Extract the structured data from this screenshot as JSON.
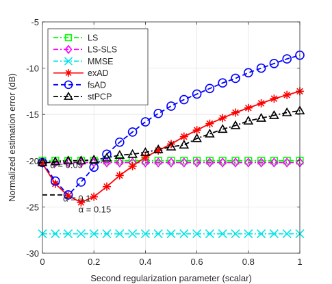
{
  "chart_data": {
    "type": "line",
    "title": "",
    "xlabel": "Second regularization parameter (scalar)",
    "ylabel": "Normalized estimation error (dB)",
    "xlim": [
      0,
      1
    ],
    "ylim": [
      -30,
      -5
    ],
    "xticks": [
      0,
      0.2,
      0.4,
      0.6,
      0.8,
      1
    ],
    "xtick_labels": [
      "0",
      "0.2",
      "0.4",
      "0.6",
      "0.8",
      "1"
    ],
    "yticks": [
      -30,
      -25,
      -20,
      -15,
      -10,
      -5
    ],
    "ytick_labels": [
      "-30",
      "-25",
      "-20",
      "-15",
      "-10",
      "-5"
    ],
    "grid": true,
    "legend_position": "top-left",
    "x": [
      0,
      0.05,
      0.1,
      0.15,
      0.2,
      0.25,
      0.3,
      0.35,
      0.4,
      0.45,
      0.5,
      0.55,
      0.6,
      0.65,
      0.7,
      0.75,
      0.8,
      0.85,
      0.9,
      0.95,
      1
    ],
    "series": [
      {
        "name": "LS",
        "color": "#00ff00",
        "dash": "dashdot",
        "marker": "square",
        "values": [
          -20,
          -20,
          -20,
          -20,
          -20,
          -20,
          -20,
          -20,
          -20,
          -20,
          -20,
          -20,
          -20,
          -20,
          -20,
          -20,
          -20,
          -20,
          -20,
          -20,
          -20
        ]
      },
      {
        "name": "LS-SLS",
        "color": "#ff00ff",
        "dash": "dashdot",
        "marker": "diamond",
        "values": [
          -20.2,
          -20.2,
          -20.2,
          -20.2,
          -20.2,
          -20.2,
          -20.2,
          -20.2,
          -20.2,
          -20.2,
          -20.2,
          -20.2,
          -20.2,
          -20.2,
          -20.2,
          -20.2,
          -20.2,
          -20.2,
          -20.2,
          -20.2,
          -20.2
        ]
      },
      {
        "name": "MMSE",
        "color": "#00e5e5",
        "dash": "dashdot",
        "marker": "x",
        "values": [
          -27.9,
          -27.9,
          -27.9,
          -27.9,
          -27.9,
          -27.9,
          -27.9,
          -27.9,
          -27.9,
          -27.9,
          -27.9,
          -27.9,
          -27.9,
          -27.9,
          -27.9,
          -27.9,
          -27.9,
          -27.9,
          -27.9,
          -27.9,
          -27.9
        ]
      },
      {
        "name": "exAD",
        "color": "#ff0000",
        "dash": "solid",
        "marker": "asterisk",
        "values": [
          -20.3,
          -22.5,
          -23.8,
          -24.5,
          -23.9,
          -22.8,
          -21.6,
          -20.6,
          -19.6,
          -18.9,
          -18.2,
          -17.4,
          -16.7,
          -16.0,
          -15.4,
          -14.8,
          -14.3,
          -13.8,
          -13.3,
          -12.9,
          -12.5
        ]
      },
      {
        "name": "fsAD",
        "color": "#0000ff",
        "dash": "dashed",
        "marker": "circle",
        "values": [
          -20.2,
          -22.2,
          -23.7,
          -22.3,
          -20.7,
          -19.3,
          -18.0,
          -16.9,
          -15.8,
          -14.9,
          -14.1,
          -13.4,
          -12.8,
          -12.2,
          -11.6,
          -11.1,
          -10.5,
          -10.0,
          -9.5,
          -9.0,
          -8.6
        ]
      },
      {
        "name": "stPCP",
        "color": "#000000",
        "dash": "dashdot",
        "marker": "triangle",
        "values": [
          -20.2,
          -20.1,
          -20.0,
          -20.0,
          -19.9,
          -19.7,
          -19.4,
          -19.3,
          -19.1,
          -18.8,
          -18.5,
          -18.3,
          -17.6,
          -17.1,
          -16.6,
          -16.2,
          -15.7,
          -15.4,
          -15.1,
          -14.8,
          -14.6
        ]
      }
    ],
    "annotations": [
      {
        "text": "α = 0.05",
        "x": 0.03,
        "y": -20.8
      },
      {
        "text": "α = 0.1",
        "x": 0.08,
        "y": -24.4
      },
      {
        "text": "α = 0.15",
        "x": 0.14,
        "y": -25.6
      }
    ],
    "annotation_bars": [
      {
        "x0": -0.02,
        "x1": 0.05,
        "y": -20.2
      },
      {
        "x0": 0.0,
        "x1": 0.09,
        "y": -23.7
      }
    ]
  }
}
